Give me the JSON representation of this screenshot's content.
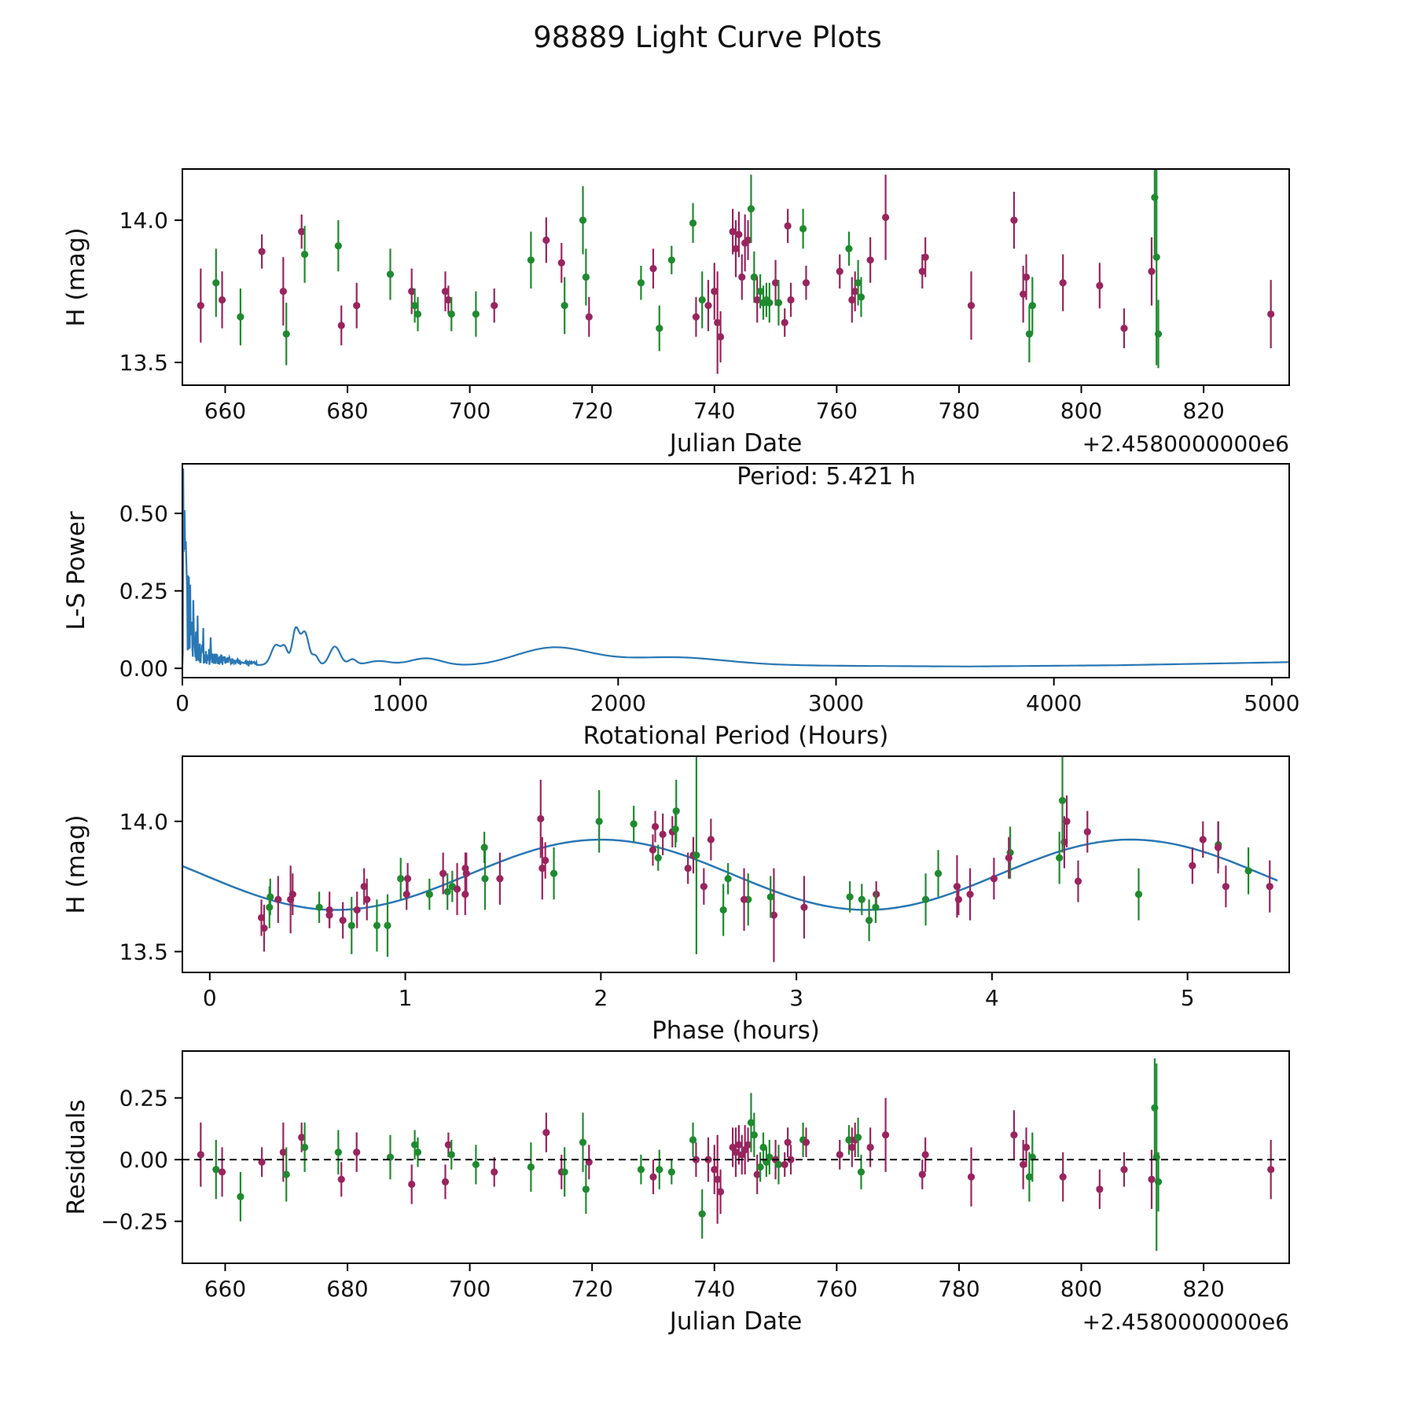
{
  "title": "98889 Light Curve Plots",
  "colors": {
    "green": "#1f8a2f",
    "purple": "#99245e",
    "line": "#2977b4",
    "axis": "#000000"
  },
  "points": [
    [
      656.0,
      13.7,
      0.13,
      "p",
      0.02
    ],
    [
      658.5,
      13.78,
      0.12,
      "g",
      -0.04
    ],
    [
      659.5,
      13.72,
      0.1,
      "p",
      -0.05
    ],
    [
      662.5,
      13.66,
      0.1,
      "g",
      -0.15
    ],
    [
      666.0,
      13.89,
      0.06,
      "p",
      -0.01
    ],
    [
      669.5,
      13.75,
      0.12,
      "p",
      0.03
    ],
    [
      670.0,
      13.6,
      0.11,
      "g",
      -0.06
    ],
    [
      672.5,
      13.96,
      0.06,
      "p",
      0.09
    ],
    [
      673.0,
      13.88,
      0.1,
      "g",
      0.05
    ],
    [
      678.5,
      13.91,
      0.09,
      "g",
      0.03
    ],
    [
      679.0,
      13.63,
      0.07,
      "p",
      -0.08
    ],
    [
      681.5,
      13.7,
      0.08,
      "p",
      0.03
    ],
    [
      687.0,
      13.81,
      0.09,
      "g",
      0.01
    ],
    [
      690.5,
      13.75,
      0.08,
      "p",
      -0.1
    ],
    [
      691.0,
      13.7,
      0.06,
      "g",
      0.06
    ],
    [
      691.5,
      13.67,
      0.06,
      "g",
      0.03
    ],
    [
      696.0,
      13.75,
      0.07,
      "p",
      -0.09
    ],
    [
      696.5,
      13.72,
      0.05,
      "p",
      0.06
    ],
    [
      697.0,
      13.67,
      0.06,
      "g",
      0.02
    ],
    [
      701.0,
      13.67,
      0.08,
      "g",
      -0.02
    ],
    [
      704.0,
      13.7,
      0.06,
      "p",
      -0.05
    ],
    [
      710.0,
      13.86,
      0.1,
      "g",
      -0.03
    ],
    [
      712.5,
      13.93,
      0.08,
      "p",
      0.11
    ],
    [
      715.0,
      13.85,
      0.07,
      "p",
      -0.05
    ],
    [
      715.5,
      13.7,
      0.1,
      "g",
      -0.05
    ],
    [
      718.5,
      14.0,
      0.12,
      "g",
      0.07
    ],
    [
      719.0,
      13.8,
      0.1,
      "g",
      -0.12
    ],
    [
      719.5,
      13.66,
      0.07,
      "p",
      -0.01
    ],
    [
      728.0,
      13.78,
      0.06,
      "g",
      -0.04
    ],
    [
      730.0,
      13.83,
      0.07,
      "p",
      -0.07
    ],
    [
      731.0,
      13.62,
      0.08,
      "g",
      -0.04
    ],
    [
      733.0,
      13.86,
      0.05,
      "g",
      -0.05
    ],
    [
      736.5,
      13.99,
      0.07,
      "g",
      0.08
    ],
    [
      737.0,
      13.66,
      0.07,
      "p",
      0.0
    ],
    [
      738.0,
      13.72,
      0.1,
      "g",
      -0.22
    ],
    [
      739.0,
      13.7,
      0.09,
      "p",
      0.0
    ],
    [
      740.0,
      13.75,
      0.1,
      "p",
      -0.04
    ],
    [
      740.5,
      13.64,
      0.18,
      "p",
      -0.08
    ],
    [
      741.0,
      13.59,
      0.09,
      "p",
      -0.13
    ],
    [
      743.0,
      13.96,
      0.08,
      "p",
      0.05
    ],
    [
      743.5,
      13.9,
      0.1,
      "p",
      0.03
    ],
    [
      744.0,
      13.95,
      0.08,
      "p",
      0.06
    ],
    [
      744.5,
      13.8,
      0.08,
      "p",
      0.02
    ],
    [
      745.0,
      13.92,
      0.1,
      "p",
      0.04
    ],
    [
      745.5,
      13.93,
      0.07,
      "p",
      0.06
    ],
    [
      746.0,
      14.04,
      0.12,
      "g",
      0.15
    ],
    [
      746.5,
      13.8,
      0.09,
      "g",
      0.1
    ],
    [
      747.0,
      13.72,
      0.08,
      "p",
      -0.06
    ],
    [
      747.5,
      13.75,
      0.06,
      "g",
      -0.03
    ],
    [
      748.0,
      13.71,
      0.06,
      "g",
      0.05
    ],
    [
      748.5,
      13.72,
      0.06,
      "g",
      -0.01
    ],
    [
      749.0,
      13.71,
      0.07,
      "g",
      0.01
    ],
    [
      750.0,
      13.78,
      0.08,
      "p",
      0.0
    ],
    [
      750.5,
      13.71,
      0.08,
      "g",
      -0.02
    ],
    [
      751.5,
      13.64,
      0.05,
      "p",
      -0.02
    ],
    [
      752.0,
      13.98,
      0.06,
      "p",
      0.07
    ],
    [
      752.5,
      13.72,
      0.06,
      "p",
      0.0
    ],
    [
      754.5,
      13.97,
      0.07,
      "g",
      0.08
    ],
    [
      755.0,
      13.78,
      0.06,
      "p",
      0.07
    ],
    [
      760.5,
      13.82,
      0.06,
      "p",
      0.02
    ],
    [
      762.0,
      13.9,
      0.06,
      "g",
      0.08
    ],
    [
      762.5,
      13.72,
      0.08,
      "p",
      0.05
    ],
    [
      763.0,
      13.75,
      0.07,
      "p",
      0.08
    ],
    [
      763.5,
      13.78,
      0.08,
      "g",
      0.09
    ],
    [
      764.0,
      13.73,
      0.07,
      "g",
      -0.05
    ],
    [
      765.5,
      13.86,
      0.08,
      "p",
      0.05
    ],
    [
      768.0,
      14.01,
      0.15,
      "p",
      0.1
    ],
    [
      774.0,
      13.82,
      0.06,
      "p",
      -0.06
    ],
    [
      774.5,
      13.87,
      0.07,
      "p",
      0.02
    ],
    [
      782.0,
      13.7,
      0.12,
      "p",
      -0.07
    ],
    [
      789.0,
      14.0,
      0.1,
      "p",
      0.1
    ],
    [
      790.5,
      13.74,
      0.1,
      "p",
      -0.02
    ],
    [
      791.0,
      13.8,
      0.08,
      "p",
      0.05
    ],
    [
      791.5,
      13.6,
      0.1,
      "g",
      -0.07
    ],
    [
      792.0,
      13.7,
      0.1,
      "g",
      0.01
    ],
    [
      797.0,
      13.78,
      0.1,
      "p",
      -0.07
    ],
    [
      803.0,
      13.77,
      0.08,
      "p",
      -0.12
    ],
    [
      807.0,
      13.62,
      0.07,
      "p",
      -0.04
    ],
    [
      811.5,
      13.82,
      0.12,
      "p",
      -0.08
    ],
    [
      812.0,
      14.08,
      0.2,
      "g",
      0.21
    ],
    [
      812.3,
      13.87,
      0.38,
      "g",
      0.01
    ],
    [
      812.6,
      13.6,
      0.12,
      "g",
      -0.09
    ],
    [
      831.0,
      13.67,
      0.12,
      "p",
      -0.04
    ]
  ],
  "chart_data": [
    {
      "id": "lightcurve",
      "type": "scatter",
      "xlabel": "Julian Date",
      "ylabel": "H (mag)",
      "offset_label": "+2.4580000000e6",
      "xlim": [
        653,
        834
      ],
      "ylim": [
        13.42,
        14.18
      ],
      "xticks": [
        660,
        680,
        700,
        720,
        740,
        760,
        780,
        800,
        820
      ],
      "xtick_labels": [
        "660",
        "680",
        "700",
        "720",
        "740",
        "760",
        "780",
        "800",
        "820"
      ],
      "yticks": [
        13.5,
        14.0
      ],
      "ytick_labels": [
        "13.5",
        "14.0"
      ],
      "y_key": "h",
      "point_columns": [
        "jd",
        "h",
        "err",
        "series_color",
        "residual"
      ]
    },
    {
      "id": "periodogram",
      "type": "line",
      "xlabel": "Rotational Period (Hours)",
      "ylabel": "L-S Power",
      "annotation": "Period: 5.421 h",
      "xlim": [
        0,
        5080
      ],
      "ylim": [
        -0.03,
        0.66
      ],
      "xticks": [
        0,
        1000,
        2000,
        3000,
        4000,
        5000
      ],
      "xtick_labels": [
        "0",
        "1000",
        "2000",
        "3000",
        "4000",
        "5000"
      ],
      "yticks": [
        0,
        0.25,
        0.5
      ],
      "ytick_labels": [
        "0.00",
        "0.25",
        "0.50"
      ],
      "baseline": [
        [
          0,
          0.012
        ],
        [
          600,
          0.01
        ],
        [
          1000,
          0.012
        ],
        [
          1400,
          0.006
        ],
        [
          2000,
          0.01
        ],
        [
          2800,
          0.009
        ],
        [
          3600,
          0.006
        ],
        [
          4300,
          0.01
        ],
        [
          5080,
          0.02
        ]
      ],
      "bumps": [
        [
          430,
          0.065,
          22
        ],
        [
          470,
          0.05,
          14
        ],
        [
          520,
          0.115,
          16
        ],
        [
          562,
          0.105,
          18
        ],
        [
          610,
          0.03,
          14
        ],
        [
          700,
          0.06,
          24
        ],
        [
          780,
          0.018,
          18
        ],
        [
          900,
          0.012,
          50
        ],
        [
          1120,
          0.022,
          70
        ],
        [
          1700,
          0.058,
          170
        ],
        [
          2250,
          0.026,
          240
        ]
      ],
      "noise_xmax": 340,
      "noise_env": [
        0.6,
        28,
        0.1,
        150
      ],
      "spikes": [
        [
          4,
          0.645
        ],
        [
          8,
          0.5
        ],
        [
          12,
          0.42
        ],
        [
          18,
          0.35
        ],
        [
          26,
          0.3
        ],
        [
          36,
          0.27
        ],
        [
          50,
          0.22
        ],
        [
          70,
          0.17
        ],
        [
          96,
          0.13
        ],
        [
          130,
          0.1
        ]
      ]
    },
    {
      "id": "phase",
      "type": "scatter_with_fit",
      "xlabel": "Phase (hours)",
      "ylabel": "H (mag)",
      "xlim": [
        -0.14,
        5.52
      ],
      "ylim": [
        13.42,
        14.25
      ],
      "xticks": [
        0,
        1,
        2,
        3,
        4,
        5
      ],
      "xtick_labels": [
        "0",
        "1",
        "2",
        "3",
        "4",
        "5"
      ],
      "yticks": [
        13.5,
        14.0
      ],
      "ytick_labels": [
        "13.5",
        "14.0"
      ],
      "fit": {
        "mean": 13.795,
        "amplitude": 0.135,
        "half_period": 2.7105,
        "phase_offset": 1.3225,
        "full_period": 5.421
      }
    },
    {
      "id": "residuals",
      "type": "scatter",
      "xlabel": "Julian Date",
      "ylabel": "Residuals",
      "offset_label": "+2.4580000000e6",
      "xlim": [
        653,
        834
      ],
      "ylim": [
        -0.42,
        0.44
      ],
      "xticks": [
        660,
        680,
        700,
        720,
        740,
        760,
        780,
        800,
        820
      ],
      "xtick_labels": [
        "660",
        "680",
        "700",
        "720",
        "740",
        "760",
        "780",
        "800",
        "820"
      ],
      "yticks": [
        -0.25,
        0,
        0.25
      ],
      "ytick_labels": [
        "−0.25",
        "0.00",
        "0.25"
      ],
      "zero_line": true,
      "y_key": "res"
    }
  ]
}
